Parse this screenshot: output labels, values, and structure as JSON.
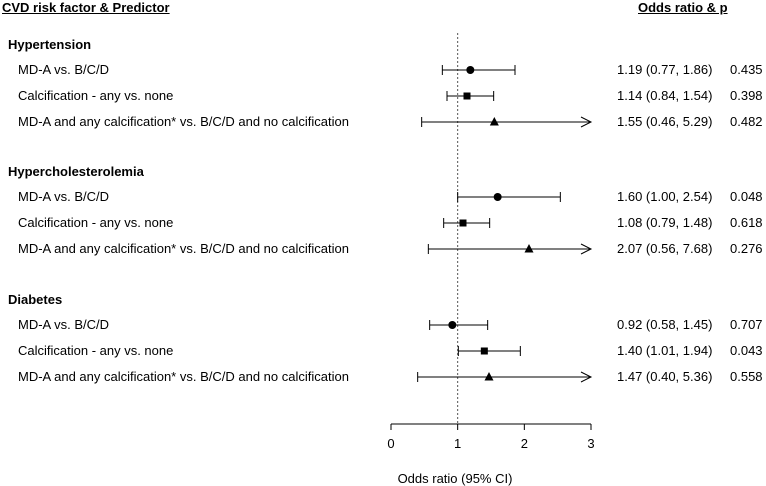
{
  "chart_data": {
    "type": "forest",
    "headers": {
      "left": "CVD risk factor & Predictor",
      "right": "Odds ratio & p"
    },
    "groups": [
      {
        "name": "Hypertension",
        "rows": [
          {
            "label": "MD-A vs. B/C/D",
            "or": 1.19,
            "lo": 0.77,
            "hi": 1.86,
            "ci_text": "1.19 (0.77, 1.86)",
            "p": "0.435",
            "marker": "circle",
            "arrow": false
          },
          {
            "label": "Calcification - any vs. none",
            "or": 1.14,
            "lo": 0.84,
            "hi": 1.54,
            "ci_text": "1.14 (0.84, 1.54)",
            "p": "0.398",
            "marker": "square",
            "arrow": false
          },
          {
            "label": "MD-A and any calcification* vs. B/C/D and no calcification",
            "or": 1.55,
            "lo": 0.46,
            "hi": 5.29,
            "ci_text": "1.55 (0.46, 5.29)",
            "p": "0.482",
            "marker": "triangle",
            "arrow": true
          }
        ]
      },
      {
        "name": "Hypercholesterolemia",
        "rows": [
          {
            "label": "MD-A vs. B/C/D",
            "or": 1.6,
            "lo": 1.0,
            "hi": 2.54,
            "ci_text": "1.60 (1.00, 2.54)",
            "p": "0.048",
            "marker": "circle",
            "arrow": false
          },
          {
            "label": "Calcification - any vs. none",
            "or": 1.08,
            "lo": 0.79,
            "hi": 1.48,
            "ci_text": "1.08 (0.79, 1.48)",
            "p": "0.618",
            "marker": "square",
            "arrow": false
          },
          {
            "label": "MD-A and any calcification* vs. B/C/D and no calcification",
            "or": 2.07,
            "lo": 0.56,
            "hi": 7.68,
            "ci_text": "2.07 (0.56, 7.68)",
            "p": "0.276",
            "marker": "triangle",
            "arrow": true
          }
        ]
      },
      {
        "name": "Diabetes",
        "rows": [
          {
            "label": "MD-A vs. B/C/D",
            "or": 0.92,
            "lo": 0.58,
            "hi": 1.45,
            "ci_text": "0.92 (0.58, 1.45)",
            "p": "0.707",
            "marker": "circle",
            "arrow": false
          },
          {
            "label": "Calcification - any vs. none",
            "or": 1.4,
            "lo": 1.01,
            "hi": 1.94,
            "ci_text": "1.40 (1.01, 1.94)",
            "p": "0.043",
            "marker": "square",
            "arrow": false
          },
          {
            "label": "MD-A and any calcification* vs. B/C/D and no calcification",
            "or": 1.47,
            "lo": 0.4,
            "hi": 5.36,
            "ci_text": "1.47 (0.40, 5.36)",
            "p": "0.558",
            "marker": "triangle",
            "arrow": true
          }
        ]
      }
    ],
    "x_axis": {
      "label": "Odds ratio (95% CI)",
      "ticks": [
        0,
        1,
        2,
        3
      ],
      "xlim": [
        0,
        3
      ]
    },
    "reference_line": 1
  }
}
